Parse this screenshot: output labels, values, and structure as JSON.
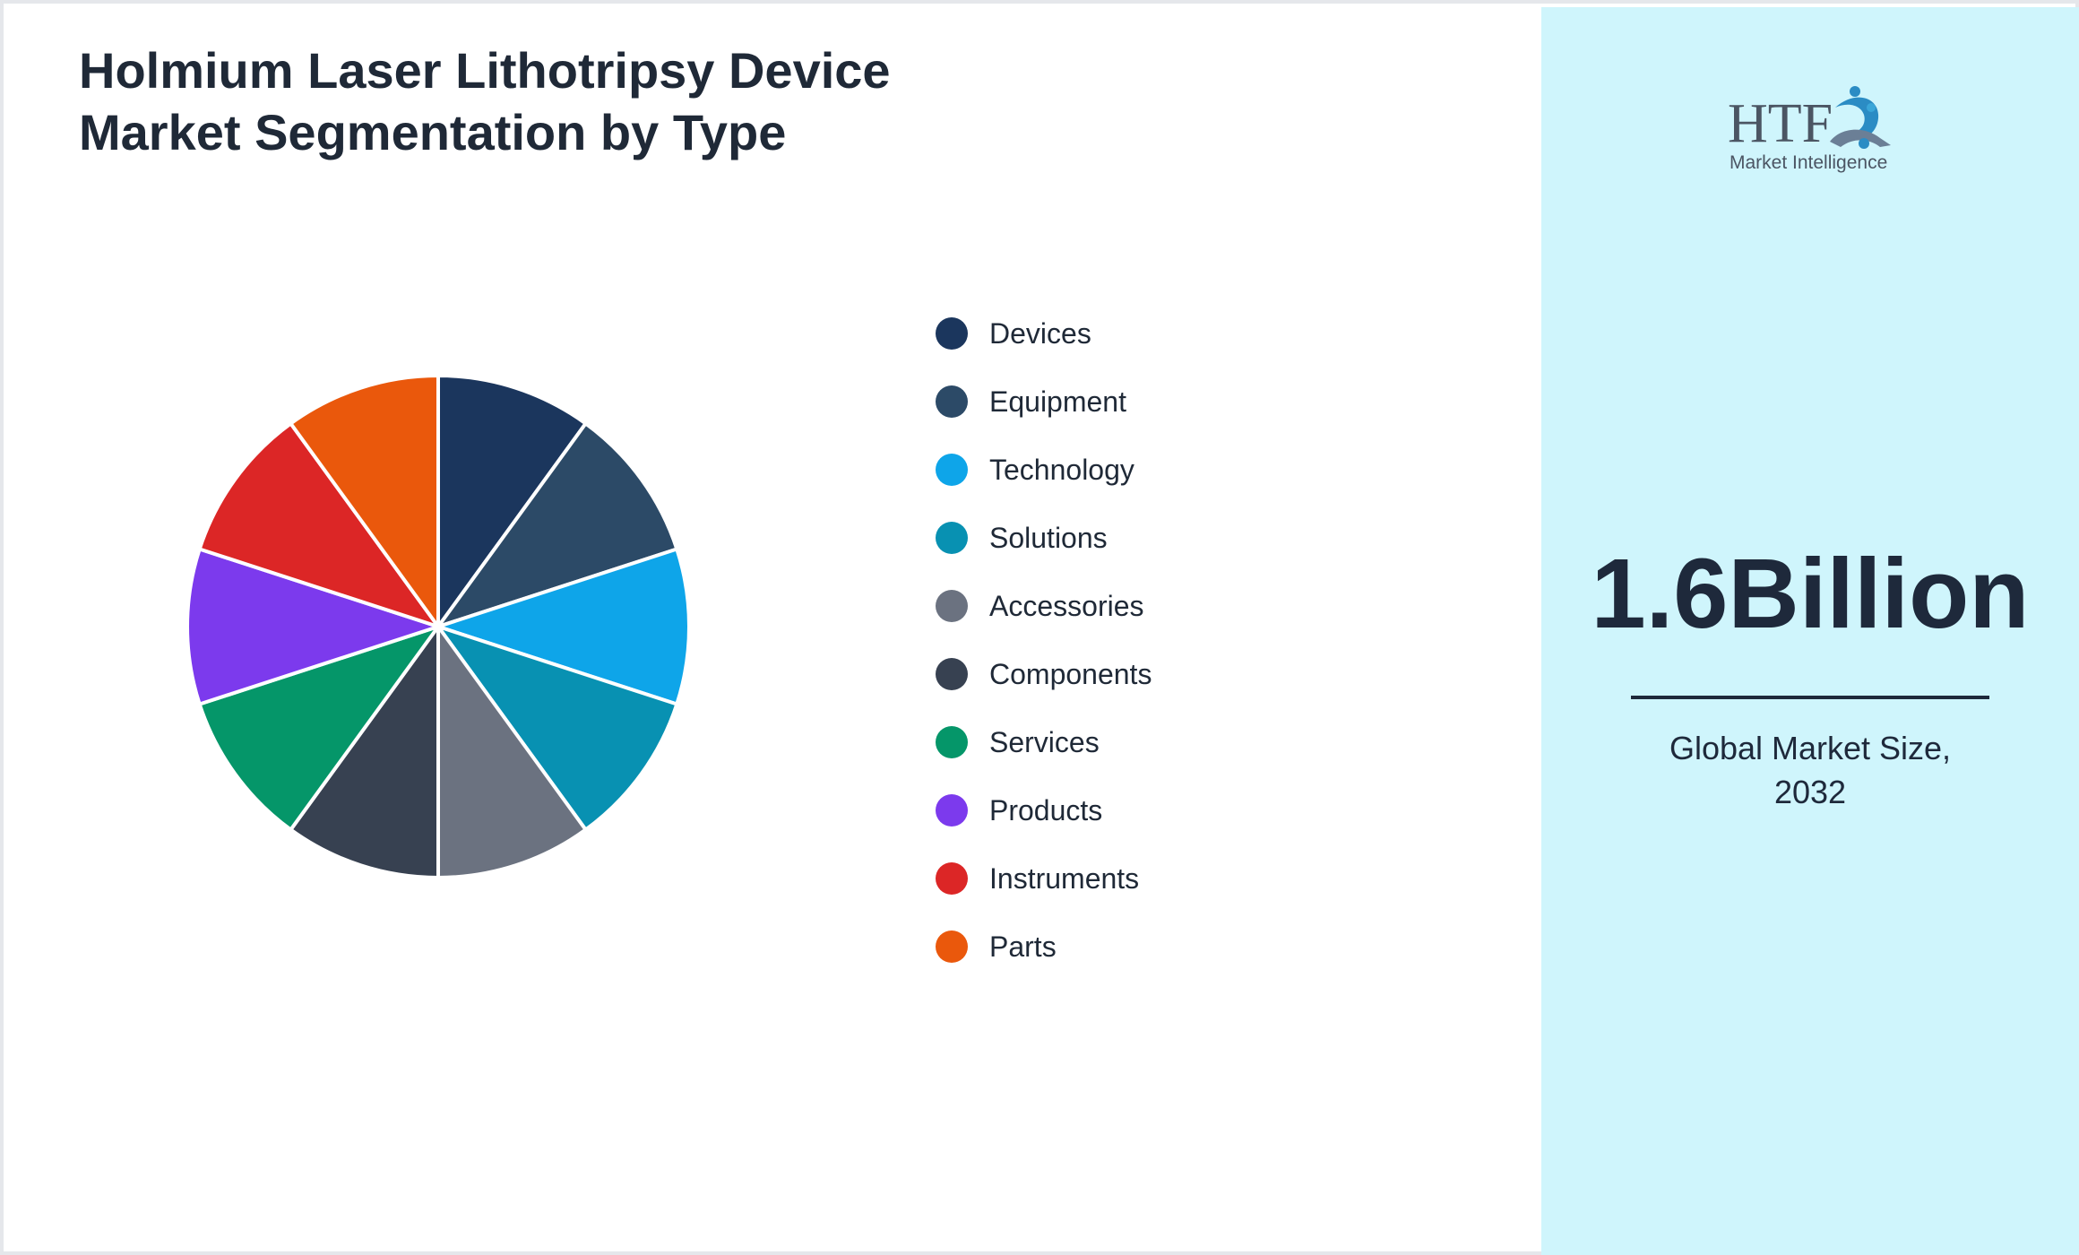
{
  "chart_data": {
    "type": "pie",
    "title": "Holmium Laser Lithotripsy Device\nMarket Segmentation by Type",
    "categories": [
      "Devices",
      "Equipment",
      "Technology",
      "Solutions",
      "Accessories",
      "Components",
      "Services",
      "Products",
      "Instruments",
      "Parts"
    ],
    "values": [
      10,
      10,
      10,
      10,
      10,
      10,
      10,
      10,
      10,
      10
    ],
    "colors": [
      "#1b365d",
      "#2c4a67",
      "#0ea5e9",
      "#0891b2",
      "#6b7280",
      "#374151",
      "#059669",
      "#7c3aed",
      "#dc2626",
      "#ea580c"
    ],
    "legend_position": "right"
  },
  "side_panel": {
    "value": "1.6Billion",
    "caption": "Global Market Size,\n2032",
    "background": "#cff5fc"
  },
  "logo": {
    "icon": "htf-market-intelligence-logo",
    "brand_text": "HTF",
    "tagline": "Market Intelligence"
  }
}
